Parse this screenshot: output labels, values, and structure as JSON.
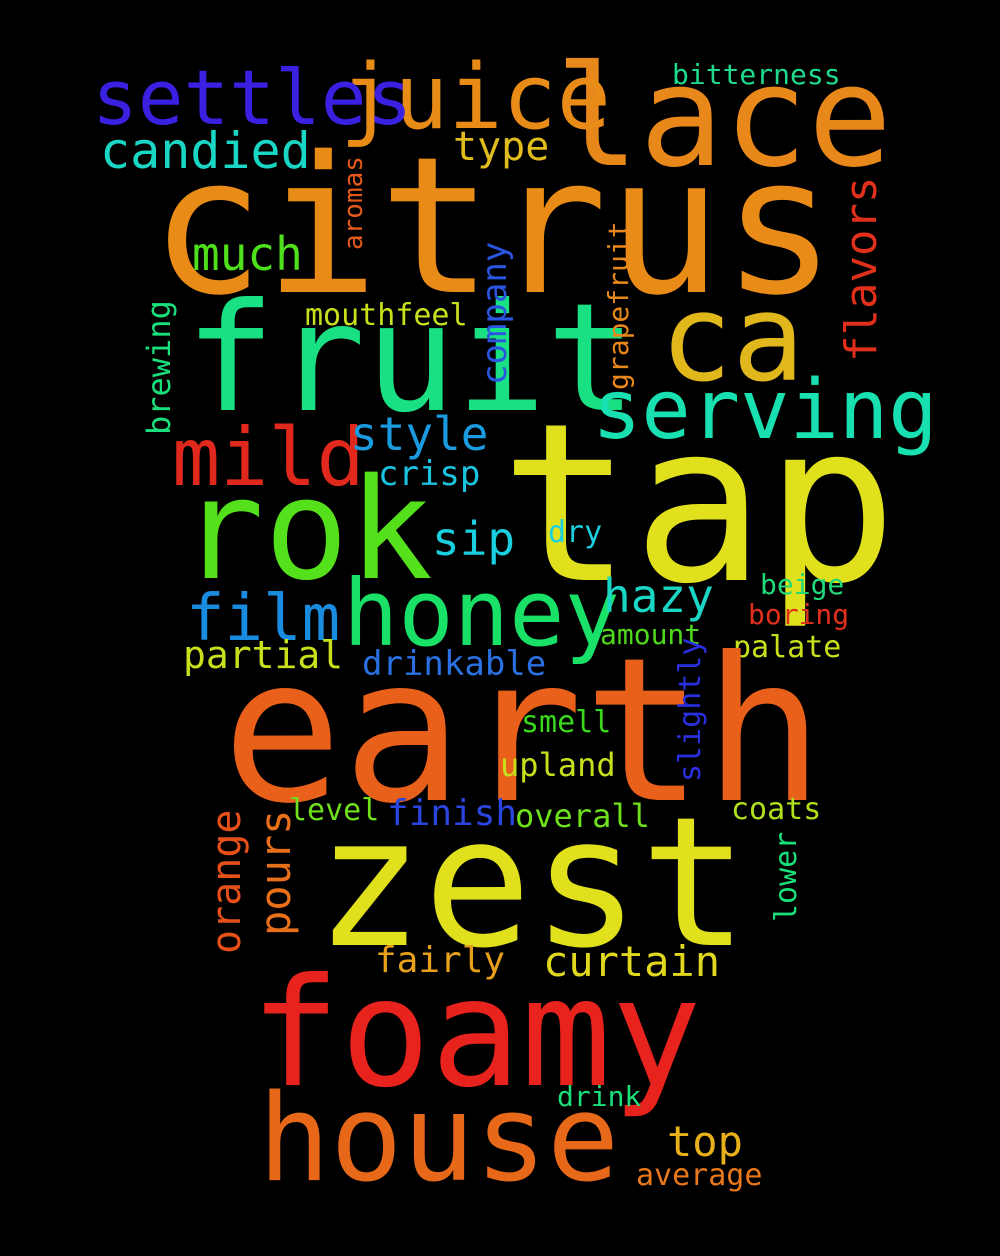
{
  "background": "#000000",
  "words": [
    {
      "text": "citrus",
      "color": "#e88c17"
    },
    {
      "text": "lace",
      "color": "#e8871a"
    },
    {
      "text": "juice",
      "color": "#e88c17"
    },
    {
      "text": "settles",
      "color": "#3a20e0"
    },
    {
      "text": "bitterness",
      "color": "#1fd98c"
    },
    {
      "text": "candied",
      "color": "#1ad6c4"
    },
    {
      "text": "type",
      "color": "#e0bd1c"
    },
    {
      "text": "aromas",
      "color": "#e55a1a"
    },
    {
      "text": "flavors",
      "color": "#e0301c"
    },
    {
      "text": "much",
      "color": "#4fe01c"
    },
    {
      "text": "fruit",
      "color": "#19e082"
    },
    {
      "text": "ca",
      "color": "#e0b81c"
    },
    {
      "text": "grapefruit",
      "color": "#e8871a"
    },
    {
      "text": "company",
      "color": "#2a55e0"
    },
    {
      "text": "mouthfeel",
      "color": "#c8e01c"
    },
    {
      "text": "brewing",
      "color": "#19e07a"
    },
    {
      "text": "serving",
      "color": "#19e0b0"
    },
    {
      "text": "mild",
      "color": "#e0281c"
    },
    {
      "text": "style",
      "color": "#1a9be0"
    },
    {
      "text": "tap",
      "color": "#e0e01c"
    },
    {
      "text": "crisp",
      "color": "#1ac4e0"
    },
    {
      "text": "rok",
      "color": "#55e01c"
    },
    {
      "text": "sip",
      "color": "#1ad0e0"
    },
    {
      "text": "dry",
      "color": "#1ad0e0"
    },
    {
      "text": "film",
      "color": "#1a8ce0"
    },
    {
      "text": "honey",
      "color": "#19e066"
    },
    {
      "text": "hazy",
      "color": "#1ad6c4"
    },
    {
      "text": "beige",
      "color": "#1fd97a"
    },
    {
      "text": "boring",
      "color": "#e0301c"
    },
    {
      "text": "amount",
      "color": "#4fd81c"
    },
    {
      "text": "partial",
      "color": "#c8e01c"
    },
    {
      "text": "drinkable",
      "color": "#2a70e0"
    },
    {
      "text": "palate",
      "color": "#c8e01c"
    },
    {
      "text": "earth",
      "color": "#e8601a"
    },
    {
      "text": "slightly",
      "color": "#2a30e0"
    },
    {
      "text": "smell",
      "color": "#3ad81c"
    },
    {
      "text": "upland",
      "color": "#c8e01c"
    },
    {
      "text": "orange",
      "color": "#e8501a"
    },
    {
      "text": "pours",
      "color": "#e8701a"
    },
    {
      "text": "level",
      "color": "#6ee01c"
    },
    {
      "text": "finish",
      "color": "#2a45e0"
    },
    {
      "text": "overall",
      "color": "#6ee01c"
    },
    {
      "text": "coats",
      "color": "#b0e01c"
    },
    {
      "text": "zest",
      "color": "#e0e01c"
    },
    {
      "text": "lower",
      "color": "#19e07a"
    },
    {
      "text": "fairly",
      "color": "#e8a01a"
    },
    {
      "text": "curtain",
      "color": "#e0d81c"
    },
    {
      "text": "foamy",
      "color": "#e8221c"
    },
    {
      "text": "drink",
      "color": "#19e07a"
    },
    {
      "text": "house",
      "color": "#e8681a"
    },
    {
      "text": "top",
      "color": "#e8b01a"
    },
    {
      "text": "average",
      "color": "#e8781a"
    }
  ]
}
